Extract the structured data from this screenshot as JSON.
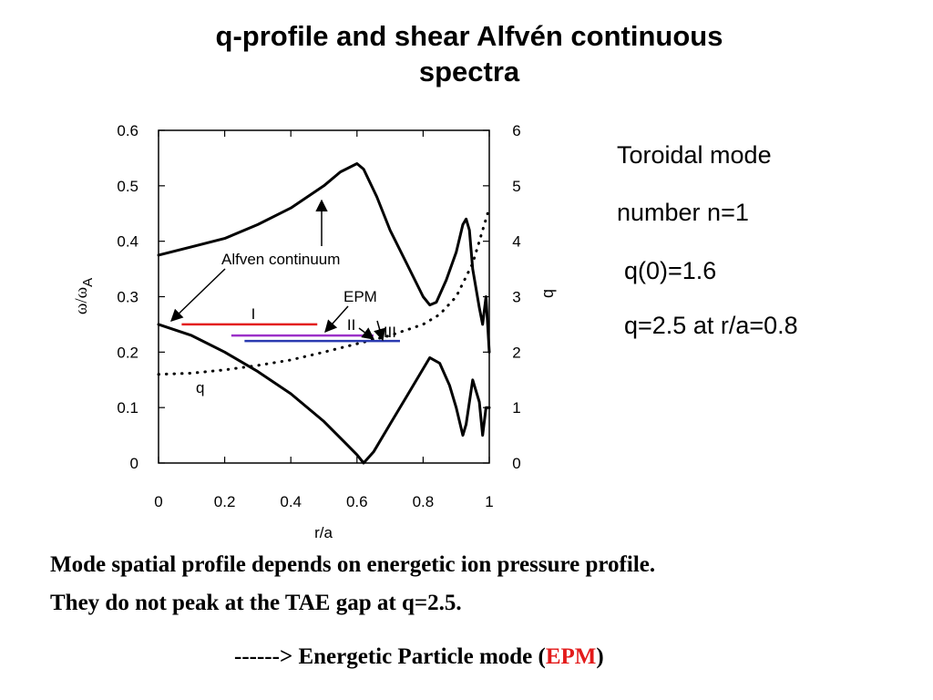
{
  "slide": {
    "title_line1": "q-profile and shear Alfvén continuous",
    "title_line2": "spectra"
  },
  "info": {
    "line1": "Toroidal mode",
    "line2": "number n=1",
    "line3": "q(0)=1.6",
    "line4": "q=2.5 at r/a=0.8"
  },
  "caption": {
    "line1": "Mode spatial profile depends on energetic ion pressure profile.",
    "line2": "They do not peak at the TAE gap at q=2.5.",
    "line3_prefix": "------> Energetic Particle mode (",
    "line3_highlight": "EPM",
    "line3_suffix": ")"
  },
  "colors": {
    "epm_highlight": "#e31b1b",
    "mode_I": "#e31b1b",
    "mode_II": "#9b30c8",
    "mode_III": "#2a3ab0"
  },
  "chart_data": {
    "type": "line",
    "xlabel": "r/a",
    "ylabel": "ω/ω",
    "ylabel_sub": "A",
    "y2label": "b",
    "xlim": [
      0,
      1
    ],
    "ylim": [
      0,
      0.6
    ],
    "y2lim": [
      0,
      6
    ],
    "xticks": [
      0,
      0.2,
      0.4,
      0.6,
      0.8,
      1
    ],
    "xtick_labels": [
      "0",
      "0.2",
      "0.4",
      "0.6",
      "0.8",
      "1"
    ],
    "yticks": [
      0,
      0.1,
      0.2,
      0.3,
      0.4,
      0.5,
      0.6
    ],
    "ytick_labels": [
      "0",
      "0.1",
      "0.2",
      "0.3",
      "0.4",
      "0.5",
      "0.6"
    ],
    "y2ticks": [
      0,
      1,
      2,
      3,
      4,
      5,
      6
    ],
    "y2tick_labels": [
      "0",
      "1",
      "2",
      "3",
      "4",
      "5",
      "6"
    ],
    "series": [
      {
        "role": "continuum-upper",
        "style": "solid",
        "x": [
          0,
          0.1,
          0.2,
          0.3,
          0.4,
          0.5,
          0.55,
          0.6,
          0.62,
          0.66,
          0.7,
          0.75,
          0.8,
          0.82,
          0.84,
          0.87,
          0.9,
          0.92,
          0.93,
          0.94,
          0.95,
          0.97,
          0.98,
          0.99,
          1.0
        ],
        "y": [
          0.375,
          0.39,
          0.405,
          0.43,
          0.46,
          0.5,
          0.525,
          0.54,
          0.53,
          0.48,
          0.42,
          0.36,
          0.3,
          0.285,
          0.29,
          0.33,
          0.38,
          0.43,
          0.44,
          0.42,
          0.35,
          0.28,
          0.25,
          0.3,
          0.2
        ]
      },
      {
        "role": "continuum-lower",
        "style": "solid",
        "x": [
          0,
          0.1,
          0.2,
          0.3,
          0.4,
          0.5,
          0.55,
          0.6,
          0.62,
          0.65,
          0.7,
          0.75,
          0.8,
          0.82,
          0.85,
          0.88,
          0.9,
          0.92,
          0.93,
          0.94,
          0.95,
          0.97,
          0.98,
          0.99,
          1.0
        ],
        "y": [
          0.25,
          0.23,
          0.2,
          0.165,
          0.125,
          0.075,
          0.045,
          0.015,
          0.0,
          0.02,
          0.07,
          0.12,
          0.17,
          0.19,
          0.18,
          0.14,
          0.1,
          0.05,
          0.07,
          0.11,
          0.15,
          0.11,
          0.05,
          0.1,
          0.1
        ]
      },
      {
        "name": "q",
        "axis": "right",
        "style": "dotted",
        "x": [
          0,
          0.1,
          0.2,
          0.3,
          0.4,
          0.5,
          0.6,
          0.7,
          0.8,
          0.85,
          0.9,
          0.95,
          1.0
        ],
        "y": [
          1.6,
          1.62,
          1.68,
          1.76,
          1.86,
          2.0,
          2.15,
          2.3,
          2.5,
          2.68,
          3.0,
          3.6,
          4.6
        ]
      }
    ],
    "mode_extents": [
      {
        "label": "I",
        "x0": 0.07,
        "x1": 0.48,
        "y": 0.25,
        "color": "#e31b1b"
      },
      {
        "label": "II",
        "x0": 0.22,
        "x1": 0.65,
        "y": 0.23,
        "color": "#9b30c8"
      },
      {
        "label": "III",
        "x0": 0.26,
        "x1": 0.73,
        "y": 0.22,
        "color": "#2a3ab0"
      }
    ],
    "annotations": {
      "alfven_continuum": "Alfven continuum",
      "epm": "EPM",
      "q": "q"
    }
  }
}
